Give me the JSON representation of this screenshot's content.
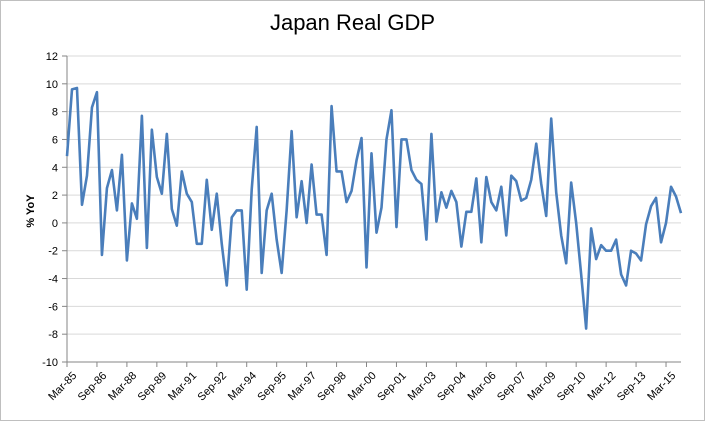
{
  "chart_data": {
    "type": "line",
    "title": "Japan Real GDP",
    "ylabel": "% YoY",
    "xlabel": "",
    "ylim": [
      -10,
      12
    ],
    "ytick_step": 2,
    "grid": "horizontal",
    "legend": "none",
    "line_color": "#4a7ebb",
    "x_tick_labels": [
      "Mar-85",
      "Sep-86",
      "Mar-88",
      "Sep-89",
      "Mar-91",
      "Sep-92",
      "Mar-94",
      "Sep-95",
      "Mar-97",
      "Sep-98",
      "Mar-00",
      "Sep-01",
      "Mar-03",
      "Sep-04",
      "Mar-06",
      "Sep-07",
      "Mar-09",
      "Sep-10",
      "Mar-12",
      "Sep-13",
      "Mar-15"
    ],
    "series": [
      {
        "name": "",
        "values": [
          4.8,
          9.6,
          9.7,
          1.3,
          3.4,
          8.3,
          9.4,
          -2.3,
          2.5,
          3.8,
          0.9,
          4.9,
          -2.7,
          1.4,
          0.3,
          7.7,
          -1.8,
          6.7,
          3.3,
          2.1,
          6.4,
          1.0,
          -0.2,
          3.7,
          2.1,
          1.5,
          -1.5,
          -1.5,
          3.1,
          -0.5,
          2.1,
          -1.5,
          -4.5,
          0.4,
          0.9,
          0.9,
          -4.8,
          2.4,
          6.9,
          -3.6,
          0.9,
          2.1,
          -1.2,
          -3.6,
          0.9,
          6.6,
          0.4,
          3.0,
          0.0,
          4.2,
          0.6,
          0.6,
          -2.3,
          8.4,
          3.7,
          3.7,
          1.5,
          2.3,
          4.5,
          6.1,
          -3.2,
          5.0,
          -0.7,
          1.1,
          6.0,
          8.1,
          -0.3,
          6.0,
          6.0,
          3.8,
          3.1,
          2.8,
          -1.2,
          6.4,
          0.1,
          2.2,
          1.1,
          2.3,
          1.5,
          -1.7,
          0.8,
          0.8,
          3.2,
          -1.4,
          3.3,
          1.5,
          0.9,
          2.6,
          -0.9,
          3.4,
          3.0,
          1.6,
          1.8,
          3.1,
          5.7,
          2.8,
          0.5,
          7.5,
          2.2,
          -0.9,
          -2.9,
          2.9,
          0.0,
          -3.7,
          -7.6,
          -0.4,
          -2.6,
          -1.6,
          -2.0,
          -2.0,
          -1.2,
          -3.7,
          -4.5,
          -2.0,
          -2.2,
          -2.7,
          -0.1,
          1.2,
          1.8,
          -1.4,
          0.0,
          2.6,
          1.9,
          0.7
        ]
      }
    ]
  }
}
